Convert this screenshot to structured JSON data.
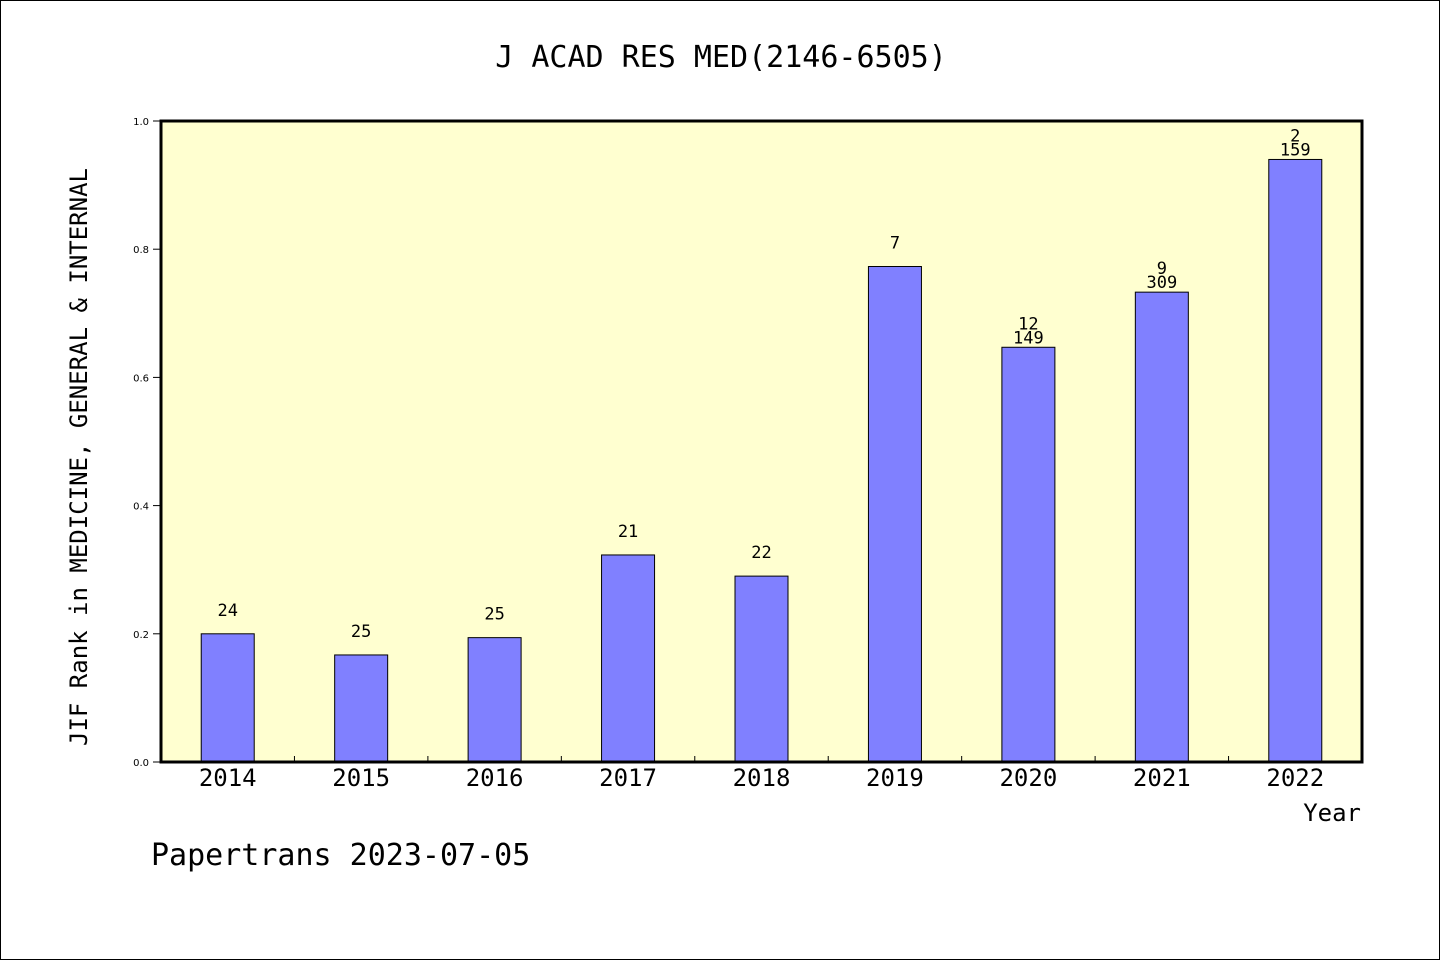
{
  "chart_data": {
    "type": "bar",
    "title": "J ACAD RES MED(2146-6505)",
    "xlabel": "Year",
    "ylabel": "JIF Rank in MEDICINE, GENERAL & INTERNAL",
    "ylim": [
      0,
      1.0
    ],
    "yticks": [
      "0.0",
      "0.2",
      "0.4",
      "0.6",
      "0.8",
      "1.0"
    ],
    "categories": [
      "2014",
      "2015",
      "2016",
      "2017",
      "2018",
      "2019",
      "2020",
      "2021",
      "2022"
    ],
    "values": [
      0.2,
      0.167,
      0.194,
      0.323,
      0.29,
      0.773,
      0.647,
      0.733,
      0.94
    ],
    "labels": [
      [
        "24"
      ],
      [
        "25"
      ],
      [
        "25"
      ],
      [
        "21"
      ],
      [
        "22"
      ],
      [
        "7"
      ],
      [
        "12",
        "149"
      ],
      [
        "9",
        "309"
      ],
      [
        "2",
        "159"
      ]
    ],
    "grid": false,
    "colors": {
      "bar": "#8080ff",
      "plot_bg": "#ffffd0",
      "axis": "#000000"
    }
  },
  "footer": "Papertrans 2023-07-05"
}
